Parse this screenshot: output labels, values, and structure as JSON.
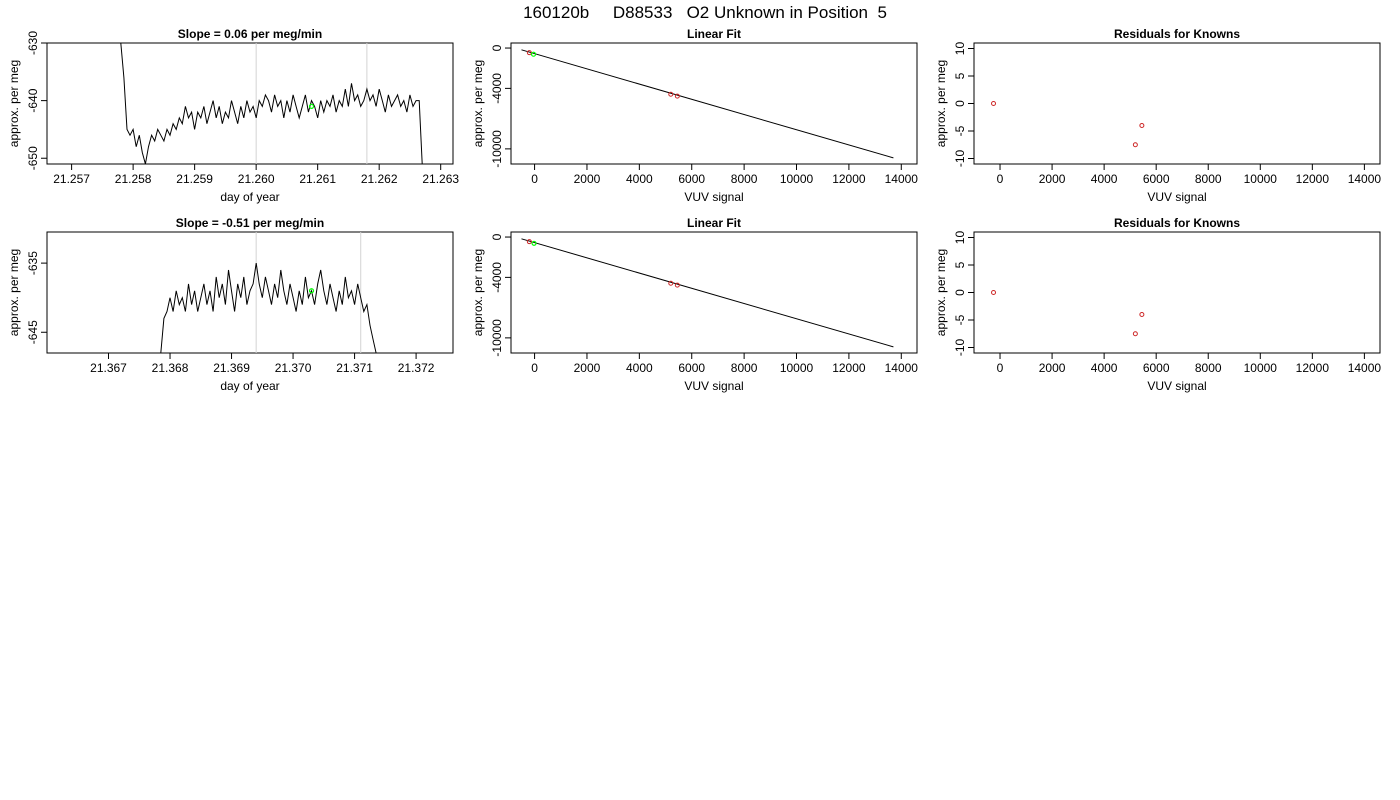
{
  "page_title": "160120b     D88533   O2 Unknown in Position  5",
  "colors": {
    "line": "#000000",
    "vline": "#d3d3d3",
    "known_point": "#cd2626",
    "unknown_point": "#00ff00",
    "axis": "#000000"
  },
  "chart_data": [
    {
      "id": "p11",
      "type": "line",
      "title": "Slope =  0.06  per meg/min",
      "xlabel": "day of year",
      "ylabel": "approx. per meg",
      "xlim": [
        21.2566,
        21.2632
      ],
      "ylim": [
        -651,
        -630
      ],
      "xticks": [
        21.257,
        21.258,
        21.259,
        21.26,
        21.261,
        21.262,
        21.263
      ],
      "xtick_labels": [
        "21.257",
        "21.258",
        "21.259",
        "21.260",
        "21.261",
        "21.262",
        "21.263"
      ],
      "yticks": [
        -650,
        -640,
        -630
      ],
      "ytick_labels": [
        "-650",
        "-640",
        "-630"
      ],
      "vlines": [
        21.26,
        21.2618
      ],
      "marker": {
        "x": 21.2609,
        "y": -641,
        "color": "#00ff00"
      },
      "series": [
        {
          "x": [
            21.2578,
            21.25785,
            21.2579,
            21.25795,
            21.258,
            21.25805,
            21.2581,
            21.25815,
            21.2582,
            21.25825,
            21.2583,
            21.25835,
            21.2584,
            21.25845,
            21.2585,
            21.25855,
            21.2586,
            21.25865,
            21.2587,
            21.25875,
            21.2588,
            21.25885,
            21.2589,
            21.25895,
            21.259,
            21.25905,
            21.2591,
            21.25915,
            21.2592,
            21.25925,
            21.2593,
            21.25935,
            21.2594,
            21.25945,
            21.2595,
            21.25955,
            21.2596,
            21.25965,
            21.2597,
            21.25975,
            21.2598,
            21.25985,
            21.2599,
            21.25995,
            21.26,
            21.26005,
            21.2601,
            21.26015,
            21.2602,
            21.26025,
            21.2603,
            21.26035,
            21.2604,
            21.26045,
            21.2605,
            21.26055,
            21.2606,
            21.26065,
            21.2607,
            21.26075,
            21.2608,
            21.26085,
            21.2609,
            21.26095,
            21.261,
            21.26105,
            21.2611,
            21.26115,
            21.2612,
            21.26125,
            21.2613,
            21.26135,
            21.2614,
            21.26145,
            21.2615,
            21.26155,
            21.2616,
            21.26165,
            21.2617,
            21.26175,
            21.2618,
            21.26185,
            21.2619,
            21.26195,
            21.262,
            21.26205,
            21.2621,
            21.26215,
            21.2622,
            21.26225,
            21.2623,
            21.26235,
            21.2624,
            21.26245,
            21.2625,
            21.26255,
            21.2626,
            21.26265,
            21.2627
          ],
          "y": [
            -630,
            -636,
            -645,
            -646,
            -645,
            -648,
            -646,
            -649,
            -651,
            -648,
            -646,
            -647,
            -645,
            -646,
            -647,
            -645,
            -646,
            -644,
            -645,
            -643,
            -644,
            -641,
            -643,
            -642,
            -645,
            -642,
            -643,
            -641,
            -644,
            -642,
            -640,
            -643,
            -641,
            -644,
            -642,
            -643,
            -640,
            -642,
            -644,
            -641,
            -643,
            -640,
            -642,
            -641,
            -643,
            -640,
            -641,
            -639,
            -640,
            -642,
            -639,
            -641,
            -640,
            -643,
            -640,
            -642,
            -639,
            -641,
            -643,
            -641,
            -639,
            -642,
            -640,
            -641,
            -643,
            -640,
            -642,
            -640,
            -641,
            -639,
            -642,
            -640,
            -641,
            -638,
            -641,
            -637,
            -640,
            -639,
            -641,
            -640,
            -638,
            -640,
            -639,
            -641,
            -638,
            -640,
            -642,
            -639,
            -641,
            -640,
            -639,
            -641,
            -640,
            -642,
            -639,
            -641,
            -640,
            -640,
            -651
          ]
        }
      ]
    },
    {
      "id": "p12",
      "type": "scatter",
      "title": "Linear Fit",
      "xlabel": "VUV signal",
      "ylabel": "approx. per meg",
      "xlim": [
        -900,
        14600
      ],
      "ylim": [
        -11500,
        500
      ],
      "xticks": [
        0,
        2000,
        4000,
        6000,
        8000,
        10000,
        12000,
        14000
      ],
      "xtick_labels": [
        "0",
        "2000",
        "4000",
        "6000",
        "8000",
        "10000",
        "12000",
        "14000"
      ],
      "yticks": [
        -10000,
        -4000,
        0
      ],
      "ytick_labels": [
        "-10000",
        "-4000",
        "0"
      ],
      "fit_line": [
        [
          -500,
          -176
        ],
        [
          13700,
          -10895
        ]
      ],
      "known_points": {
        "x": [
          -200,
          5200,
          5450
        ],
        "y": [
          -460,
          -4580,
          -4770
        ]
      },
      "unknown_points": {
        "x": [
          -40
        ],
        "y": [
          -610
        ]
      }
    },
    {
      "id": "p13",
      "type": "scatter",
      "title": "Residuals for Knowns",
      "xlabel": "VUV signal",
      "ylabel": "approx. per meg",
      "xlim": [
        -1000,
        14600
      ],
      "ylim": [
        -11,
        11
      ],
      "xticks": [
        0,
        2000,
        4000,
        6000,
        8000,
        10000,
        12000,
        14000
      ],
      "xtick_labels": [
        "0",
        "2000",
        "4000",
        "6000",
        "8000",
        "10000",
        "12000",
        "14000"
      ],
      "yticks": [
        -10,
        -5,
        0,
        5,
        10
      ],
      "ytick_labels": [
        "-10",
        "-5",
        "0",
        "5",
        "10"
      ],
      "known_points": {
        "x": [
          -250,
          5200,
          5450
        ],
        "y": [
          0,
          -7.5,
          -4
        ]
      }
    },
    {
      "id": "p21",
      "type": "line",
      "title": "Slope =  -0.51  per meg/min",
      "xlabel": "day of year",
      "ylabel": "approx. per meg",
      "xlim": [
        21.366,
        21.3726
      ],
      "ylim": [
        -648,
        -630.5
      ],
      "xticks": [
        21.367,
        21.368,
        21.369,
        21.37,
        21.371,
        21.372
      ],
      "xtick_labels": [
        "21.367",
        "21.368",
        "21.369",
        "21.370",
        "21.371",
        "21.372"
      ],
      "yticks": [
        -645,
        -635
      ],
      "ytick_labels": [
        "-645",
        "-635"
      ],
      "vlines": [
        21.3694,
        21.3711
      ],
      "marker": {
        "x": 21.3703,
        "y": -639,
        "color": "#00ff00"
      },
      "series": [
        {
          "x": [
            21.36785,
            21.3679,
            21.36795,
            21.368,
            21.36805,
            21.3681,
            21.36815,
            21.3682,
            21.36825,
            21.3683,
            21.36835,
            21.3684,
            21.36845,
            21.3685,
            21.36855,
            21.3686,
            21.36865,
            21.3687,
            21.36875,
            21.3688,
            21.36885,
            21.3689,
            21.36895,
            21.369,
            21.36905,
            21.3691,
            21.36915,
            21.3692,
            21.36925,
            21.3693,
            21.36935,
            21.3694,
            21.36945,
            21.3695,
            21.36955,
            21.3696,
            21.36965,
            21.3697,
            21.36975,
            21.3698,
            21.36985,
            21.3699,
            21.36995,
            21.37,
            21.37005,
            21.3701,
            21.37015,
            21.3702,
            21.37025,
            21.3703,
            21.37035,
            21.3704,
            21.37045,
            21.3705,
            21.37055,
            21.3706,
            21.37065,
            21.3707,
            21.37075,
            21.3708,
            21.37085,
            21.3709,
            21.37095,
            21.371,
            21.37105,
            21.3711,
            21.37115,
            21.3712,
            21.37125,
            21.3713,
            21.37135
          ],
          "y": [
            -648,
            -643,
            -642,
            -640,
            -642,
            -639,
            -641,
            -640,
            -642,
            -638,
            -641,
            -639,
            -642,
            -640,
            -638,
            -641,
            -639,
            -642,
            -637,
            -640,
            -638,
            -641,
            -636,
            -639,
            -642,
            -638,
            -640,
            -637,
            -641,
            -639,
            -638,
            -635,
            -638,
            -640,
            -637,
            -639,
            -641,
            -638,
            -640,
            -636,
            -639,
            -641,
            -638,
            -640,
            -642,
            -639,
            -641,
            -637,
            -640,
            -639,
            -641,
            -638,
            -636,
            -639,
            -641,
            -638,
            -640,
            -642,
            -639,
            -641,
            -637,
            -640,
            -639,
            -641,
            -638,
            -640,
            -642,
            -641,
            -644,
            -646,
            -648
          ]
        }
      ]
    },
    {
      "id": "p22",
      "type": "scatter",
      "title": "Linear Fit",
      "xlabel": "VUV signal",
      "ylabel": "approx. per meg",
      "xlim": [
        -900,
        14600
      ],
      "ylim": [
        -11500,
        500
      ],
      "xticks": [
        0,
        2000,
        4000,
        6000,
        8000,
        10000,
        12000,
        14000
      ],
      "xtick_labels": [
        "0",
        "2000",
        "4000",
        "6000",
        "8000",
        "10000",
        "12000",
        "14000"
      ],
      "yticks": [
        -10000,
        -4000,
        0
      ],
      "ytick_labels": [
        "-10000",
        "-4000",
        "0"
      ],
      "fit_line": [
        [
          -500,
          -176
        ],
        [
          13700,
          -10895
        ]
      ],
      "known_points": {
        "x": [
          -200,
          5200,
          5450
        ],
        "y": [
          -460,
          -4580,
          -4770
        ]
      },
      "unknown_points": {
        "x": [
          -20
        ],
        "y": [
          -620
        ]
      }
    },
    {
      "id": "p23",
      "type": "scatter",
      "title": "Residuals for Knowns",
      "xlabel": "VUV signal",
      "ylabel": "approx. per meg",
      "xlim": [
        -1000,
        14600
      ],
      "ylim": [
        -11,
        11
      ],
      "xticks": [
        0,
        2000,
        4000,
        6000,
        8000,
        10000,
        12000,
        14000
      ],
      "xtick_labels": [
        "0",
        "2000",
        "4000",
        "6000",
        "8000",
        "10000",
        "12000",
        "14000"
      ],
      "yticks": [
        -10,
        -5,
        0,
        5,
        10
      ],
      "ytick_labels": [
        "-10",
        "-5",
        "0",
        "5",
        "10"
      ],
      "known_points": {
        "x": [
          -250,
          5200,
          5450
        ],
        "y": [
          0,
          -7.5,
          -4
        ]
      }
    }
  ]
}
